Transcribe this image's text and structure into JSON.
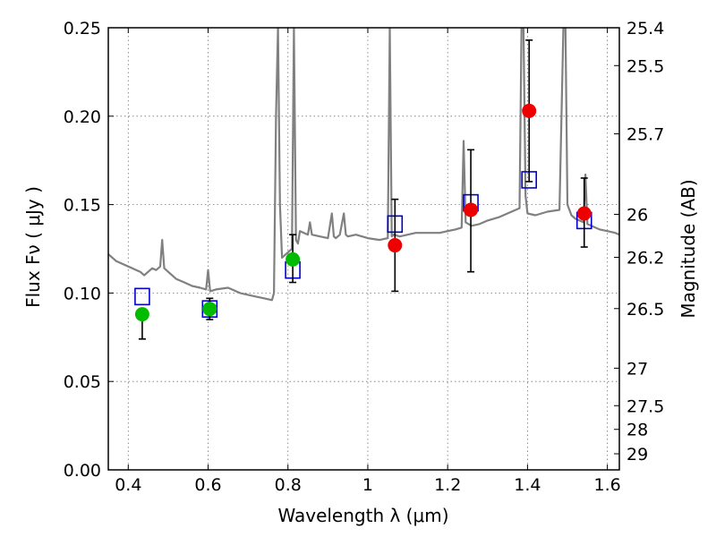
{
  "chart_data": {
    "type": "scatter",
    "xlabel": "Wavelength  λ (μm)",
    "ylabel": "Flux  Fν  ( μJy )",
    "ylabel_right": "Magnitude (AB)",
    "xlim": [
      0.35,
      1.63
    ],
    "ylim": [
      0,
      0.25
    ],
    "grid": true,
    "x_ticks": [
      0.4,
      0.6,
      0.8,
      1.0,
      1.2,
      1.4,
      1.6
    ],
    "x_tick_labels": [
      "0.4",
      "0.6",
      "0.8",
      "1",
      "1.2",
      "1.4",
      "1.6"
    ],
    "y_ticks": [
      0.0,
      0.05,
      0.1,
      0.15,
      0.2,
      0.25
    ],
    "y_tick_labels": [
      "0.00",
      "0.05",
      "0.10",
      "0.15",
      "0.20",
      "0.25"
    ],
    "right_ticks": [
      {
        "label": "25.4",
        "flux": 0.25
      },
      {
        "label": "25.5",
        "flux": 0.2286
      },
      {
        "label": "25.7",
        "flux": 0.19
      },
      {
        "label": "26",
        "flux": 0.1445
      },
      {
        "label": "26.2",
        "flux": 0.1202
      },
      {
        "label": "26.5",
        "flux": 0.0912
      },
      {
        "label": "27",
        "flux": 0.0575
      },
      {
        "label": "27.5",
        "flux": 0.0363
      },
      {
        "label": "28",
        "flux": 0.0229
      },
      {
        "label": "29",
        "flux": 0.0091
      }
    ],
    "series": [
      {
        "marker": "line",
        "color": "#808080",
        "x": [
          0.35,
          0.36,
          0.37,
          0.38,
          0.39,
          0.4,
          0.41,
          0.42,
          0.43,
          0.44,
          0.45,
          0.46,
          0.47,
          0.48,
          0.485,
          0.49,
          0.5,
          0.52,
          0.54,
          0.56,
          0.58,
          0.595,
          0.6,
          0.605,
          0.62,
          0.65,
          0.68,
          0.7,
          0.72,
          0.74,
          0.76,
          0.765,
          0.77,
          0.775,
          0.78,
          0.785,
          0.79,
          0.8,
          0.81,
          0.815,
          0.82,
          0.825,
          0.83,
          0.84,
          0.85,
          0.855,
          0.86,
          0.88,
          0.9,
          0.91,
          0.915,
          0.92,
          0.93,
          0.94,
          0.945,
          0.95,
          0.97,
          1.0,
          1.03,
          1.05,
          1.055,
          1.06,
          1.065,
          1.08,
          1.1,
          1.12,
          1.15,
          1.18,
          1.2,
          1.22,
          1.235,
          1.24,
          1.245,
          1.26,
          1.28,
          1.3,
          1.33,
          1.36,
          1.38,
          1.385,
          1.39,
          1.395,
          1.4,
          1.42,
          1.45,
          1.48,
          1.49,
          1.495,
          1.5,
          1.51,
          1.52,
          1.54,
          1.545,
          1.55,
          1.56,
          1.58,
          1.6,
          1.62,
          1.63
        ],
        "y": [
          0.122,
          0.12,
          0.118,
          0.117,
          0.116,
          0.115,
          0.114,
          0.113,
          0.112,
          0.11,
          0.112,
          0.114,
          0.113,
          0.115,
          0.13,
          0.114,
          0.112,
          0.108,
          0.106,
          0.104,
          0.103,
          0.102,
          0.113,
          0.101,
          0.102,
          0.103,
          0.1,
          0.099,
          0.098,
          0.097,
          0.096,
          0.1,
          0.2,
          0.25,
          0.15,
          0.12,
          0.121,
          0.123,
          0.125,
          0.25,
          0.13,
          0.128,
          0.135,
          0.134,
          0.133,
          0.14,
          0.133,
          0.132,
          0.131,
          0.145,
          0.132,
          0.131,
          0.133,
          0.145,
          0.133,
          0.132,
          0.133,
          0.131,
          0.13,
          0.131,
          0.25,
          0.132,
          0.133,
          0.132,
          0.133,
          0.134,
          0.134,
          0.134,
          0.135,
          0.136,
          0.137,
          0.186,
          0.14,
          0.138,
          0.139,
          0.141,
          0.143,
          0.146,
          0.148,
          0.25,
          0.25,
          0.155,
          0.145,
          0.144,
          0.146,
          0.147,
          0.25,
          0.25,
          0.15,
          0.144,
          0.142,
          0.14,
          0.167,
          0.139,
          0.138,
          0.136,
          0.135,
          0.134,
          0.133
        ]
      },
      {
        "marker": "square",
        "color": "#0000cc",
        "x": [
          0.435,
          0.604,
          0.812,
          1.068,
          1.258,
          1.404,
          1.542
        ],
        "y": [
          0.098,
          0.091,
          0.113,
          0.139,
          0.151,
          0.164,
          0.141
        ]
      },
      {
        "marker": "circle",
        "color": "#00bb00",
        "x": [
          0.435,
          0.604,
          0.812
        ],
        "y": [
          0.088,
          0.091,
          0.119
        ],
        "yerr_low": [
          0.074,
          0.085,
          0.106
        ],
        "yerr_high": [
          0.088,
          0.097,
          0.133
        ]
      },
      {
        "marker": "circle",
        "color": "#ee0000",
        "x": [
          1.068,
          1.258,
          1.404,
          1.542
        ],
        "y": [
          0.127,
          0.147,
          0.203,
          0.145
        ],
        "yerr_low": [
          0.101,
          0.112,
          0.163,
          0.126
        ],
        "yerr_high": [
          0.153,
          0.181,
          0.243,
          0.165
        ]
      }
    ]
  }
}
